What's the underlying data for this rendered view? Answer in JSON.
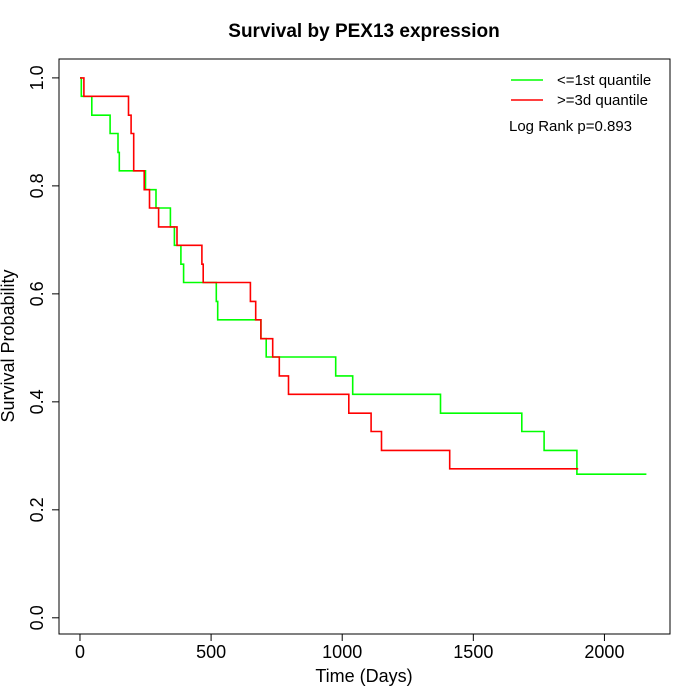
{
  "chart_data": {
    "type": "line",
    "title": "Survival by PEX13 expression",
    "xlabel": "Time (Days)",
    "ylabel": "Survival Probability",
    "xlim": [
      -80,
      2250
    ],
    "ylim": [
      -0.03,
      1.035
    ],
    "xticks": [
      0,
      500,
      1000,
      1500,
      2000
    ],
    "yticks": [
      0.0,
      0.2,
      0.4,
      0.6,
      0.8,
      1.0
    ],
    "xtick_labels": [
      "0",
      "500",
      "1000",
      "1500",
      "2000"
    ],
    "ytick_labels": [
      "0.0",
      "0.2",
      "0.4",
      "0.6",
      "0.8",
      "1.0"
    ],
    "legend_position": "top-right",
    "annotation": "Log Rank p=0.893",
    "series": [
      {
        "name": "<=1st quantile",
        "color": "#00ff00",
        "x": [
          0,
          5,
          45,
          115,
          145,
          150,
          250,
          290,
          345,
          360,
          385,
          395,
          520,
          525,
          690,
          710,
          975,
          1040,
          1375,
          1685,
          1770,
          1895,
          2160
        ],
        "y": [
          1.0,
          0.966,
          0.931,
          0.897,
          0.862,
          0.828,
          0.793,
          0.759,
          0.724,
          0.69,
          0.655,
          0.621,
          0.586,
          0.552,
          0.517,
          0.483,
          0.448,
          0.414,
          0.379,
          0.345,
          0.31,
          0.266,
          0.266
        ]
      },
      {
        "name": ">=3d quantile",
        "color": "#ff0000",
        "x": [
          0,
          15,
          185,
          195,
          205,
          245,
          265,
          300,
          370,
          465,
          470,
          650,
          670,
          690,
          735,
          760,
          795,
          1025,
          1110,
          1150,
          1410,
          1900
        ],
        "y": [
          1.0,
          0.966,
          0.931,
          0.897,
          0.828,
          0.793,
          0.759,
          0.724,
          0.69,
          0.655,
          0.621,
          0.586,
          0.552,
          0.517,
          0.483,
          0.448,
          0.414,
          0.379,
          0.345,
          0.31,
          0.276,
          0.276
        ]
      }
    ]
  }
}
